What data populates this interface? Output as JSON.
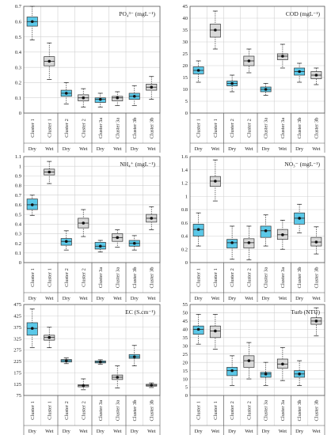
{
  "colors": {
    "dry": "#5bc8e8",
    "wet": "#d9d9d9",
    "frame": "#555555",
    "grid": "#d0d0d0",
    "whisker": "#333333"
  },
  "chart_data": [
    {
      "type": "box",
      "title": "PO₄³⁻ (mgL⁻¹)",
      "ylim": [
        0,
        0.7
      ],
      "yticks": [
        "0",
        "0.1",
        "0.2",
        "0.3",
        "0.4",
        "0.5",
        "0.6",
        "0.7"
      ],
      "categories": [
        "Cluster 1",
        "Cluster 1",
        "Cluster 2",
        "Cluster 2",
        "Cluster 3a",
        "Cluster 3a",
        "Cluster 3b",
        "Cluster 3b"
      ],
      "season": [
        "Dry",
        "Wet",
        "Dry",
        "Wet",
        "Dry",
        "Wet",
        "Dry",
        "Wet"
      ],
      "boxes": [
        {
          "min": 0.48,
          "q1": 0.57,
          "median": 0.6,
          "q3": 0.63,
          "max": 0.7
        },
        {
          "min": 0.22,
          "q1": 0.31,
          "median": 0.34,
          "q3": 0.37,
          "max": 0.46
        },
        {
          "min": 0.06,
          "q1": 0.11,
          "median": 0.13,
          "q3": 0.15,
          "max": 0.2
        },
        {
          "min": 0.04,
          "q1": 0.08,
          "median": 0.1,
          "q3": 0.12,
          "max": 0.16
        },
        {
          "min": 0.04,
          "q1": 0.07,
          "median": 0.09,
          "q3": 0.1,
          "max": 0.13
        },
        {
          "min": 0.05,
          "q1": 0.08,
          "median": 0.1,
          "q3": 0.11,
          "max": 0.14
        },
        {
          "min": 0.05,
          "q1": 0.09,
          "median": 0.11,
          "q3": 0.13,
          "max": 0.18
        },
        {
          "min": 0.09,
          "q1": 0.15,
          "median": 0.17,
          "q3": 0.19,
          "max": 0.24
        }
      ]
    },
    {
      "type": "box",
      "title": "COD (mgL⁻¹)",
      "ylim": [
        0,
        45
      ],
      "yticks": [
        "0",
        "5",
        "10",
        "15",
        "20",
        "25",
        "30",
        "35",
        "40",
        "45"
      ],
      "categories": [
        "Cluster 1",
        "Cluster 1",
        "Cluster 2",
        "Cluster 2",
        "Cluster 3a",
        "Cluster 3a",
        "Cluster 3b",
        "Cluster 3b"
      ],
      "season": [
        "Dry",
        "Wet",
        "Dry",
        "Wet",
        "Dry",
        "Wet",
        "Dry",
        "Wet"
      ],
      "boxes": [
        {
          "min": 13,
          "q1": 16.5,
          "median": 18,
          "q3": 19.5,
          "max": 22
        },
        {
          "min": 27,
          "q1": 32,
          "median": 35,
          "q3": 37.5,
          "max": 43
        },
        {
          "min": 9,
          "q1": 11.5,
          "median": 12.5,
          "q3": 13.5,
          "max": 16
        },
        {
          "min": 17,
          "q1": 20,
          "median": 22,
          "q3": 24,
          "max": 27
        },
        {
          "min": 7.5,
          "q1": 9,
          "median": 10,
          "q3": 11,
          "max": 12.5
        },
        {
          "min": 19,
          "q1": 22.5,
          "median": 24,
          "q3": 25,
          "max": 29
        },
        {
          "min": 13,
          "q1": 16,
          "median": 17.5,
          "q3": 19,
          "max": 21
        },
        {
          "min": 12,
          "q1": 14.5,
          "median": 16,
          "q3": 17.5,
          "max": 19
        }
      ]
    },
    {
      "type": "box",
      "title": "NH₄⁺ (mgL⁻¹)",
      "ylim": [
        0,
        1.1
      ],
      "yticks": [
        "0",
        "0.1",
        "0.2",
        "0.3",
        "0.4",
        "0.5",
        "0.6",
        "0.7",
        "0.8",
        "0.9",
        "1",
        "1.1"
      ],
      "categories": [
        "Cluster 1",
        "Cluster 1",
        "Cluster 2",
        "Cluster 2",
        "Cluster 3a",
        "Cluster 3a",
        "Cluster 3b",
        "Cluster 3b"
      ],
      "season": [
        "Dry",
        "Wet",
        "Dry",
        "Wet",
        "Dry",
        "Wet",
        "Dry",
        "Wet"
      ],
      "boxes": [
        {
          "min": 0.49,
          "q1": 0.55,
          "median": 0.6,
          "q3": 0.66,
          "max": 0.7
        },
        {
          "min": 0.82,
          "q1": 0.91,
          "median": 0.94,
          "q3": 0.97,
          "max": 1.05
        },
        {
          "min": 0.13,
          "q1": 0.18,
          "median": 0.22,
          "q3": 0.25,
          "max": 0.33
        },
        {
          "min": 0.27,
          "q1": 0.36,
          "median": 0.41,
          "q3": 0.46,
          "max": 0.55
        },
        {
          "min": 0.11,
          "q1": 0.14,
          "median": 0.17,
          "q3": 0.21,
          "max": 0.23
        },
        {
          "min": 0.16,
          "q1": 0.22,
          "median": 0.26,
          "q3": 0.3,
          "max": 0.34
        },
        {
          "min": 0.13,
          "q1": 0.17,
          "median": 0.2,
          "q3": 0.23,
          "max": 0.28
        },
        {
          "min": 0.34,
          "q1": 0.42,
          "median": 0.46,
          "q3": 0.5,
          "max": 0.58
        }
      ]
    },
    {
      "type": "box",
      "title": "NO₃⁻ (mgL⁻¹)",
      "ylim": [
        0,
        1.6
      ],
      "yticks": [
        "0",
        "0.2",
        "0.4",
        "0.6",
        "0.8",
        "1",
        "1.2",
        "1.4",
        "1.6"
      ],
      "categories": [
        "Cluster 1",
        "Cluster 1",
        "Cluster 2",
        "Cluster 2",
        "Cluster 3a",
        "Cluster 3a",
        "Cluster 3b",
        "Cluster 3b"
      ],
      "season": [
        "Dry",
        "Wet",
        "Dry",
        "Wet",
        "Dry",
        "Wet",
        "Dry",
        "Wet"
      ],
      "boxes": [
        {
          "min": 0.25,
          "q1": 0.4,
          "median": 0.5,
          "q3": 0.58,
          "max": 0.75
        },
        {
          "min": 0.93,
          "q1": 1.15,
          "median": 1.23,
          "q3": 1.3,
          "max": 1.55
        },
        {
          "min": 0.05,
          "q1": 0.22,
          "median": 0.3,
          "q3": 0.35,
          "max": 0.55
        },
        {
          "min": 0.04,
          "q1": 0.22,
          "median": 0.3,
          "q3": 0.36,
          "max": 0.55
        },
        {
          "min": 0.25,
          "q1": 0.38,
          "median": 0.48,
          "q3": 0.55,
          "max": 0.72
        },
        {
          "min": 0.2,
          "q1": 0.35,
          "median": 0.42,
          "q3": 0.5,
          "max": 0.64
        },
        {
          "min": 0.45,
          "q1": 0.58,
          "median": 0.67,
          "q3": 0.75,
          "max": 0.88
        },
        {
          "min": 0.13,
          "q1": 0.25,
          "median": 0.31,
          "q3": 0.38,
          "max": 0.54
        }
      ]
    },
    {
      "type": "box",
      "title": "EC (S.cm⁻¹)",
      "ylim": [
        75,
        475
      ],
      "yticks": [
        "75",
        "125",
        "175",
        "225",
        "275",
        "325",
        "375",
        "425",
        "475"
      ],
      "categories": [
        "Cluster 1",
        "Cluster 1",
        "Cluster 2",
        "Cluster 2",
        "Cluster 3a",
        "Cluster 3a",
        "Cluster 3b",
        "Cluster 3b"
      ],
      "season": [
        "Dry",
        "Wet",
        "Dry",
        "Wet",
        "Dry",
        "Wet",
        "Dry",
        "Wet"
      ],
      "boxes": [
        {
          "min": 285,
          "q1": 340,
          "median": 370,
          "q3": 395,
          "max": 455
        },
        {
          "min": 285,
          "q1": 318,
          "median": 330,
          "q3": 340,
          "max": 375
        },
        {
          "min": 215,
          "q1": 222,
          "median": 228,
          "q3": 233,
          "max": 240
        },
        {
          "min": 100,
          "q1": 113,
          "median": 118,
          "q3": 122,
          "max": 148
        },
        {
          "min": 212,
          "q1": 218,
          "median": 222,
          "q3": 227,
          "max": 232
        },
        {
          "min": 108,
          "q1": 145,
          "median": 155,
          "q3": 165,
          "max": 205
        },
        {
          "min": 205,
          "q1": 238,
          "median": 245,
          "q3": 255,
          "max": 295
        },
        {
          "min": 110,
          "q1": 116,
          "median": 120,
          "q3": 124,
          "max": 130
        }
      ]
    },
    {
      "type": "box",
      "title": "Turb (NTU)",
      "ylim": [
        0,
        55
      ],
      "yticks": [
        "0",
        "5",
        "10",
        "15",
        "20",
        "25",
        "30",
        "35",
        "40",
        "45",
        "50",
        "55"
      ],
      "categories": [
        "Cluster 1",
        "Cluster 1",
        "Cluster 2",
        "Cluster 2",
        "Cluster 3a",
        "Cluster 3a",
        "Cluster 3b",
        "Cluster 3b"
      ],
      "season": [
        "Dry",
        "Wet",
        "Dry",
        "Wet",
        "Dry",
        "Wet",
        "Dry",
        "Wet"
      ],
      "boxes": [
        {
          "min": 31,
          "q1": 37,
          "median": 40,
          "q3": 42,
          "max": 49
        },
        {
          "min": 28,
          "q1": 35,
          "median": 39,
          "q3": 42,
          "max": 49
        },
        {
          "min": 6,
          "q1": 12,
          "median": 15,
          "q3": 17,
          "max": 24
        },
        {
          "min": 10,
          "q1": 17,
          "median": 21,
          "q3": 24,
          "max": 32
        },
        {
          "min": 6,
          "q1": 11,
          "median": 13,
          "q3": 14,
          "max": 20
        },
        {
          "min": 9,
          "q1": 16.5,
          "median": 19,
          "q3": 22,
          "max": 29
        },
        {
          "min": 6,
          "q1": 11,
          "median": 13,
          "q3": 15,
          "max": 21
        },
        {
          "min": 36,
          "q1": 43,
          "median": 45,
          "q3": 47,
          "max": 53
        }
      ]
    }
  ]
}
